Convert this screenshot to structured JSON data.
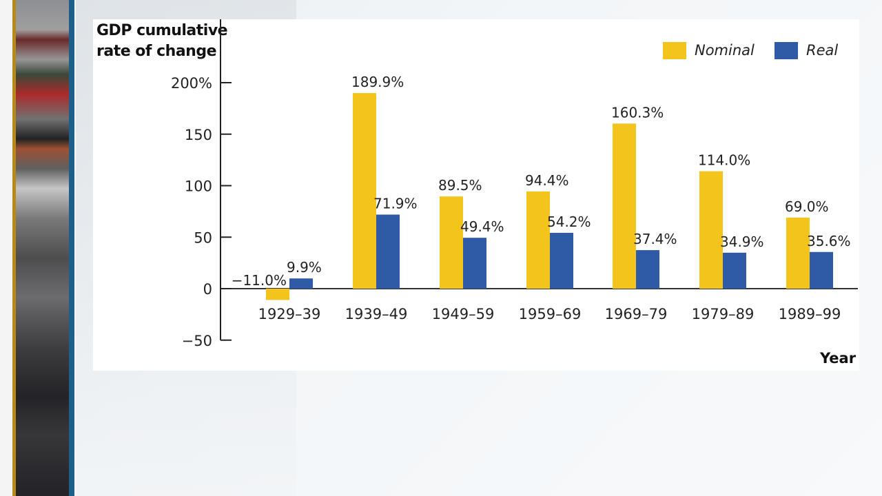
{
  "chart_data": {
    "type": "bar",
    "title": "",
    "ylabel": "GDP cumulative rate of change",
    "ylabel_lines": [
      "GDP cumulative",
      "rate of change"
    ],
    "xlabel": "Year",
    "categories": [
      "1929–39",
      "1939–49",
      "1949–59",
      "1959–69",
      "1969–79",
      "1979–89",
      "1989–99"
    ],
    "series": [
      {
        "name": "Nominal",
        "color": "#f2c41c",
        "values": [
          -11.0,
          189.9,
          89.5,
          94.4,
          160.3,
          114.0,
          69.0
        ],
        "labels": [
          "−11.0%",
          "189.9%",
          "89.5%",
          "94.4%",
          "160.3%",
          "114.0%",
          "69.0%"
        ]
      },
      {
        "name": "Real",
        "color": "#2f5ba6",
        "values": [
          9.9,
          71.9,
          49.4,
          54.2,
          37.4,
          34.9,
          35.6
        ],
        "labels": [
          "9.9%",
          "71.9%",
          "49.4%",
          "54.2%",
          "37.4%",
          "34.9%",
          "35.6%"
        ]
      }
    ],
    "yticks": [
      200,
      150,
      100,
      50,
      0,
      -50
    ],
    "ytick_labels": [
      "200%",
      "150",
      "100",
      "50",
      "0",
      "−50"
    ],
    "ylim": [
      -50,
      200
    ],
    "grid": false,
    "legend_position": "top-right"
  },
  "legend": {
    "nominal_label": "Nominal",
    "real_label": "Real"
  },
  "colors": {
    "nominal": "#f2c41c",
    "real": "#2f5ba6",
    "axis": "#222222",
    "accent_gold": "#b58a1a",
    "accent_blue": "#1d5f8a"
  }
}
